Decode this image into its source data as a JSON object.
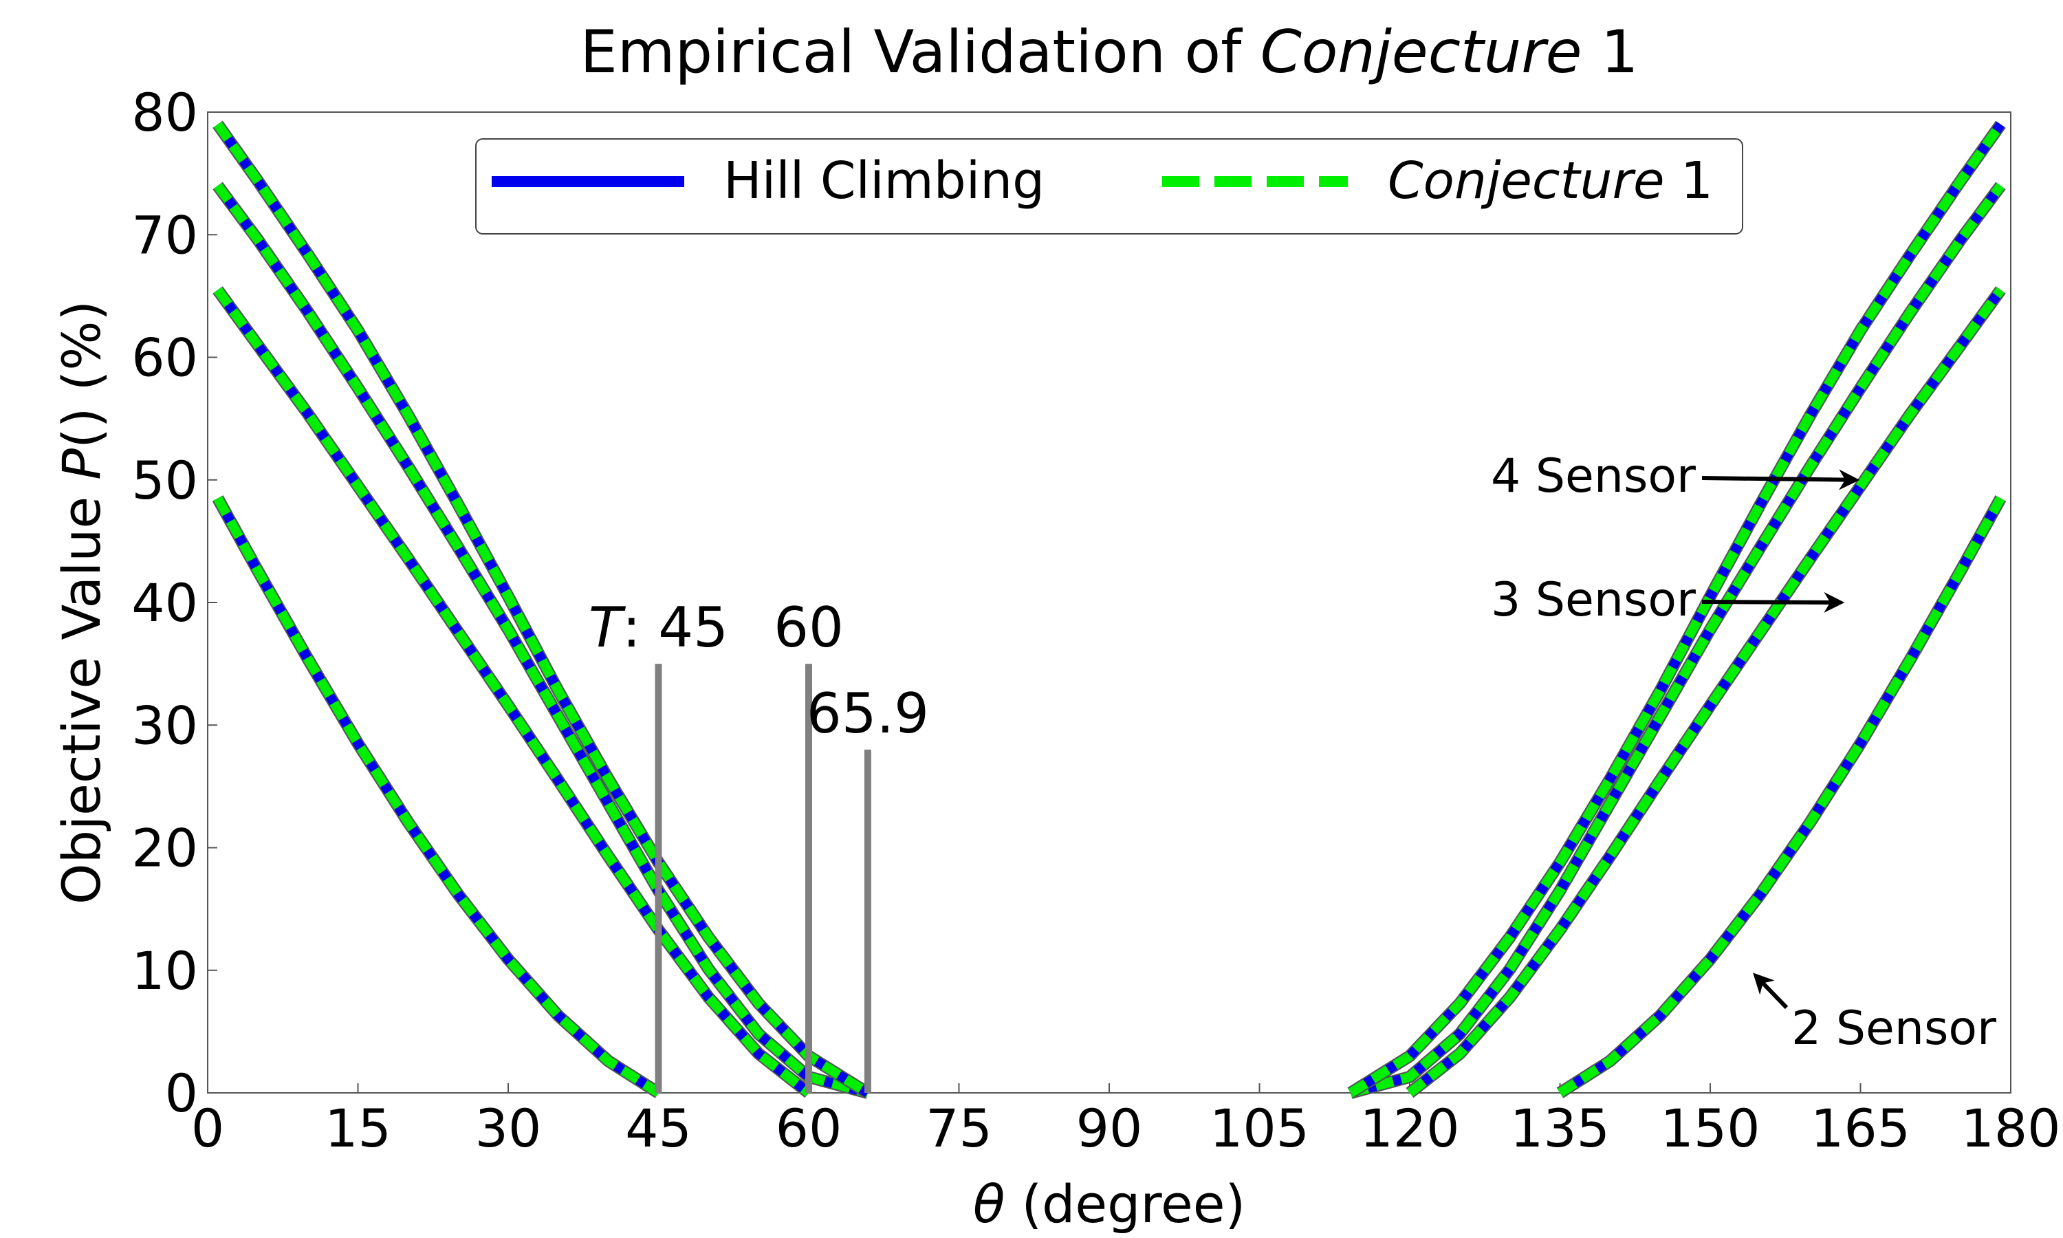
{
  "chart_data": {
    "type": "line",
    "title_prefix": "Empirical Validation of ",
    "title_italic": "Conjecture",
    "title_suffix": " 1",
    "xlabel_symbol": "θ",
    "xlabel_rest": " (degree)",
    "ylabel_prefix": "Objective Value ",
    "ylabel_italic": "P",
    "ylabel_suffix": "() (%)",
    "xlim": [
      0,
      180
    ],
    "ylim": [
      0,
      80
    ],
    "xticks": [
      0,
      15,
      30,
      45,
      60,
      75,
      90,
      105,
      120,
      135,
      150,
      165,
      180
    ],
    "yticks": [
      0,
      10,
      20,
      30,
      40,
      50,
      60,
      70,
      80
    ],
    "legend": {
      "position": "top-center",
      "entries": [
        {
          "label": "Hill Climbing",
          "italic": "",
          "color": "#0000ee",
          "style": "solid"
        },
        {
          "label": "",
          "italic": "Conjecture",
          "suffix": " 1",
          "color": "#00ee00",
          "style": "dashed"
        }
      ]
    },
    "colors": {
      "hill": "#0000ee",
      "conj": "#00ee00",
      "marker": "#808080"
    },
    "series": [
      {
        "name": "2 Sensor",
        "x": [
          1,
          5,
          10,
          15,
          20,
          25,
          30,
          35,
          40,
          45,
          135,
          140,
          145,
          150,
          155,
          160,
          165,
          170,
          175,
          179
        ],
        "y": [
          48.5,
          42.6,
          35.4,
          28.5,
          22.1,
          16.2,
          10.9,
          6.3,
          2.6,
          0,
          0,
          2.6,
          6.3,
          10.9,
          16.2,
          22.1,
          28.5,
          35.4,
          42.6,
          48.5
        ]
      },
      {
        "name": "3 Sensor",
        "x": [
          1,
          5,
          10,
          15,
          20,
          25,
          30,
          35,
          40,
          45,
          50,
          55,
          60,
          120,
          125,
          130,
          135,
          140,
          145,
          150,
          155,
          160,
          165,
          170,
          175,
          179
        ],
        "y": [
          65.5,
          61,
          55.4,
          49.5,
          43.6,
          37.6,
          31.6,
          25.5,
          19.3,
          13.3,
          7.8,
          3.2,
          0,
          0,
          3.2,
          7.8,
          13.3,
          19.3,
          25.5,
          31.6,
          37.6,
          43.6,
          49.5,
          55.4,
          61,
          65.5
        ]
      },
      {
        "name": "4 Sensor",
        "x": [
          1,
          5,
          10,
          15,
          20,
          25,
          30,
          35,
          40,
          45,
          50,
          55,
          60,
          65.9,
          114.1,
          120,
          125,
          130,
          135,
          140,
          145,
          150,
          155,
          160,
          165,
          170,
          175,
          179
        ],
        "y": [
          74,
          69.6,
          63.7,
          57.5,
          51.1,
          44.5,
          37.8,
          30.7,
          23.6,
          16.5,
          10.1,
          4.8,
          1.3,
          0,
          0,
          1.3,
          4.8,
          10.1,
          16.5,
          23.6,
          30.7,
          37.8,
          44.5,
          51.1,
          57.5,
          63.7,
          69.6,
          74
        ]
      },
      {
        "name": "",
        "x": [
          1,
          5,
          10,
          15,
          20,
          25,
          30,
          35,
          40,
          45,
          50,
          55,
          60,
          65.9,
          114.1,
          120,
          125,
          130,
          135,
          140,
          145,
          150,
          155,
          160,
          165,
          170,
          175,
          179
        ],
        "y": [
          79,
          74.4,
          68.4,
          62.2,
          55.3,
          48,
          40.5,
          32.8,
          25.6,
          18.8,
          12.7,
          7.3,
          3,
          0,
          0,
          3,
          7.3,
          12.7,
          18.8,
          25.6,
          32.8,
          40.5,
          48,
          55.3,
          62.2,
          68.4,
          74.4,
          79
        ]
      }
    ],
    "threshold_markers": [
      {
        "x": 45,
        "top": 35,
        "label_italic": "T",
        "label": ": 45"
      },
      {
        "x": 60,
        "top": 35,
        "label_italic": "",
        "label": "60"
      },
      {
        "x": 65.9,
        "top": 28,
        "label_italic": "",
        "label": "65.9"
      }
    ],
    "annotations": [
      {
        "text": "4 Sensor",
        "arrow_to": [
          164.5,
          50
        ]
      },
      {
        "text": "3 Sensor",
        "arrow_to": [
          163,
          40
        ]
      },
      {
        "text": "2 Sensor",
        "arrow_to": [
          154,
          10
        ]
      }
    ]
  }
}
